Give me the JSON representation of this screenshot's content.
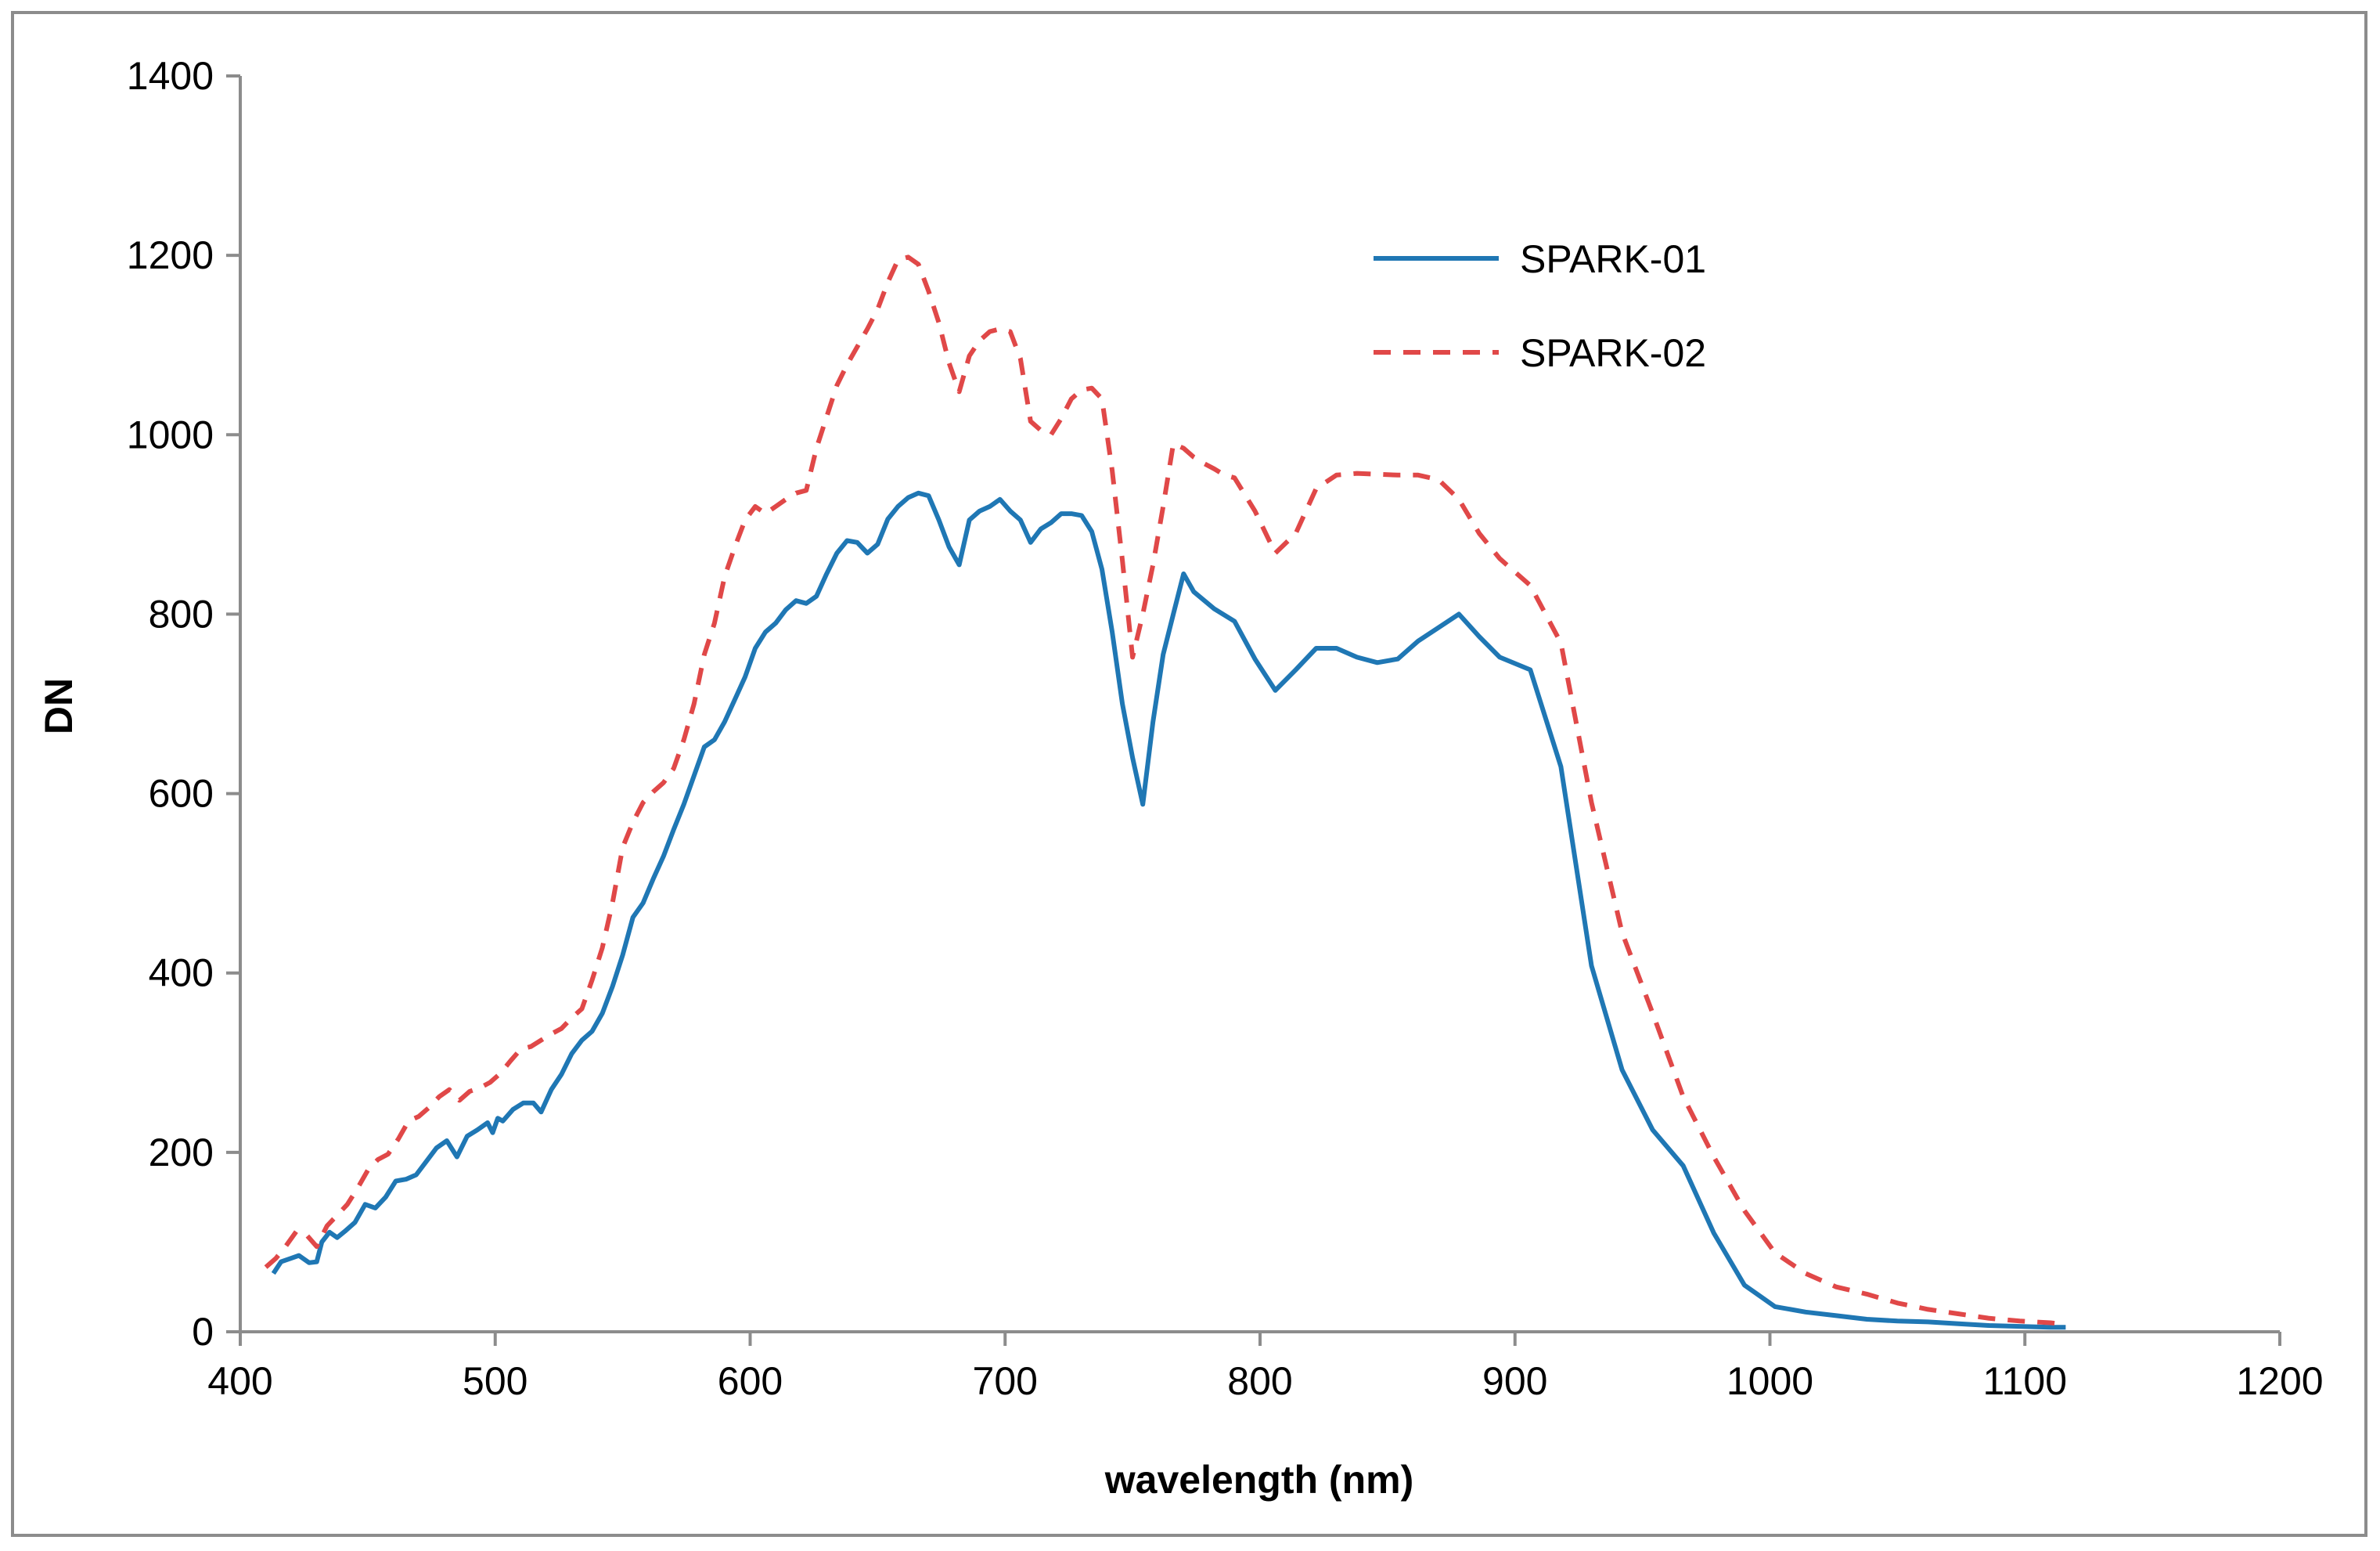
{
  "chart_data": {
    "type": "line",
    "title": "",
    "xlabel": "wavelength (nm)",
    "ylabel": "DN",
    "xlim": [
      400,
      1200
    ],
    "ylim": [
      0,
      1400
    ],
    "xticks": [
      400,
      500,
      600,
      700,
      800,
      900,
      1000,
      1100,
      1200
    ],
    "yticks": [
      0,
      200,
      400,
      600,
      800,
      1000,
      1200,
      1400
    ],
    "grid": false,
    "legend_position": "top-right",
    "series": [
      {
        "name": "SPARK-01",
        "color": "#1f77b4",
        "style": "solid",
        "x": [
          413,
          416,
          420,
          423,
          427,
          430,
          432,
          435,
          438,
          441,
          445,
          449,
          453,
          457,
          461,
          465,
          469,
          473,
          477,
          481,
          485,
          489,
          493,
          497,
          499,
          501,
          503,
          507,
          511,
          515,
          518,
          522,
          526,
          530,
          534,
          538,
          542,
          546,
          550,
          554,
          558,
          562,
          566,
          570,
          574,
          578,
          582,
          586,
          590,
          594,
          598,
          602,
          606,
          610,
          614,
          618,
          622,
          626,
          630,
          634,
          638,
          642,
          646,
          650,
          654,
          658,
          662,
          666,
          670,
          674,
          678,
          682,
          686,
          690,
          694,
          698,
          702,
          706,
          710,
          714,
          718,
          722,
          726,
          730,
          734,
          738,
          742,
          746,
          750,
          754,
          758,
          762,
          766,
          770,
          774,
          782,
          790,
          798,
          806,
          814,
          822,
          830,
          838,
          846,
          854,
          862,
          870,
          878,
          886,
          894,
          906,
          918,
          930,
          942,
          954,
          966,
          978,
          990,
          1002,
          1014,
          1026,
          1038,
          1050,
          1062,
          1074,
          1086,
          1098,
          1110,
          1116
        ],
        "y": [
          65,
          78,
          82,
          85,
          77,
          78,
          100,
          111,
          105,
          112,
          122,
          142,
          138,
          150,
          168,
          170,
          175,
          190,
          205,
          213,
          195,
          218,
          225,
          233,
          222,
          238,
          235,
          248,
          255,
          255,
          245,
          270,
          287,
          310,
          325,
          335,
          355,
          385,
          420,
          462,
          478,
          505,
          530,
          560,
          588,
          620,
          652,
          660,
          680,
          705,
          730,
          762,
          780,
          790,
          805,
          815,
          812,
          820,
          845,
          868,
          882,
          880,
          868,
          878,
          906,
          920,
          930,
          935,
          932,
          905,
          875,
          855,
          905,
          915,
          920,
          928,
          915,
          905,
          880,
          895,
          902,
          912,
          912,
          910,
          892,
          850,
          780,
          700,
          640,
          588,
          680,
          755,
          800,
          845,
          825,
          806,
          792,
          750,
          715,
          738,
          762,
          762,
          752,
          746,
          750,
          770,
          785,
          800,
          775,
          752,
          738,
          630,
          408,
          292,
          225,
          185,
          110,
          52,
          28,
          22,
          18,
          14,
          12,
          11,
          9,
          7,
          6,
          5,
          5
        ]
      },
      {
        "name": "SPARK-02",
        "color": "#e04848",
        "style": "dashed",
        "x": [
          410,
          414,
          418,
          422,
          426,
          430,
          434,
          438,
          442,
          446,
          450,
          454,
          458,
          462,
          466,
          470,
          474,
          478,
          482,
          486,
          490,
          494,
          498,
          502,
          506,
          510,
          514,
          518,
          522,
          526,
          530,
          534,
          538,
          542,
          546,
          550,
          554,
          558,
          562,
          566,
          570,
          574,
          578,
          582,
          586,
          590,
          594,
          598,
          602,
          606,
          610,
          614,
          618,
          622,
          626,
          630,
          634,
          638,
          642,
          646,
          650,
          654,
          658,
          662,
          666,
          670,
          674,
          678,
          682,
          686,
          690,
          694,
          698,
          702,
          706,
          710,
          714,
          718,
          722,
          726,
          730,
          734,
          738,
          742,
          746,
          750,
          754,
          758,
          762,
          766,
          770,
          774,
          778,
          782,
          786,
          790,
          798,
          806,
          814,
          822,
          830,
          838,
          846,
          854,
          862,
          870,
          878,
          886,
          894,
          906,
          918,
          930,
          942,
          954,
          966,
          978,
          990,
          1002,
          1014,
          1026,
          1038,
          1050,
          1062,
          1074,
          1086,
          1098,
          1110,
          1116
        ],
        "y": [
          72,
          82,
          96,
          112,
          108,
          95,
          118,
          130,
          142,
          160,
          180,
          192,
          198,
          215,
          235,
          240,
          250,
          262,
          270,
          258,
          268,
          272,
          278,
          288,
          302,
          315,
          318,
          325,
          332,
          338,
          350,
          360,
          392,
          428,
          478,
          540,
          568,
          590,
          602,
          612,
          628,
          660,
          700,
          755,
          790,
          842,
          875,
          905,
          920,
          912,
          920,
          928,
          935,
          938,
          985,
          1020,
          1055,
          1078,
          1098,
          1118,
          1140,
          1170,
          1195,
          1198,
          1190,
          1160,
          1125,
          1080,
          1048,
          1088,
          1105,
          1115,
          1118,
          1115,
          1085,
          1015,
          1005,
          1000,
          1018,
          1040,
          1050,
          1052,
          1040,
          960,
          860,
          752,
          800,
          855,
          920,
          990,
          985,
          975,
          968,
          962,
          955,
          952,
          915,
          868,
          890,
          940,
          955,
          957,
          956,
          955,
          955,
          950,
          928,
          890,
          862,
          832,
          768,
          590,
          445,
          355,
          262,
          195,
          135,
          88,
          65,
          50,
          42,
          32,
          25,
          20,
          15,
          12,
          10,
          8
        ]
      }
    ]
  }
}
